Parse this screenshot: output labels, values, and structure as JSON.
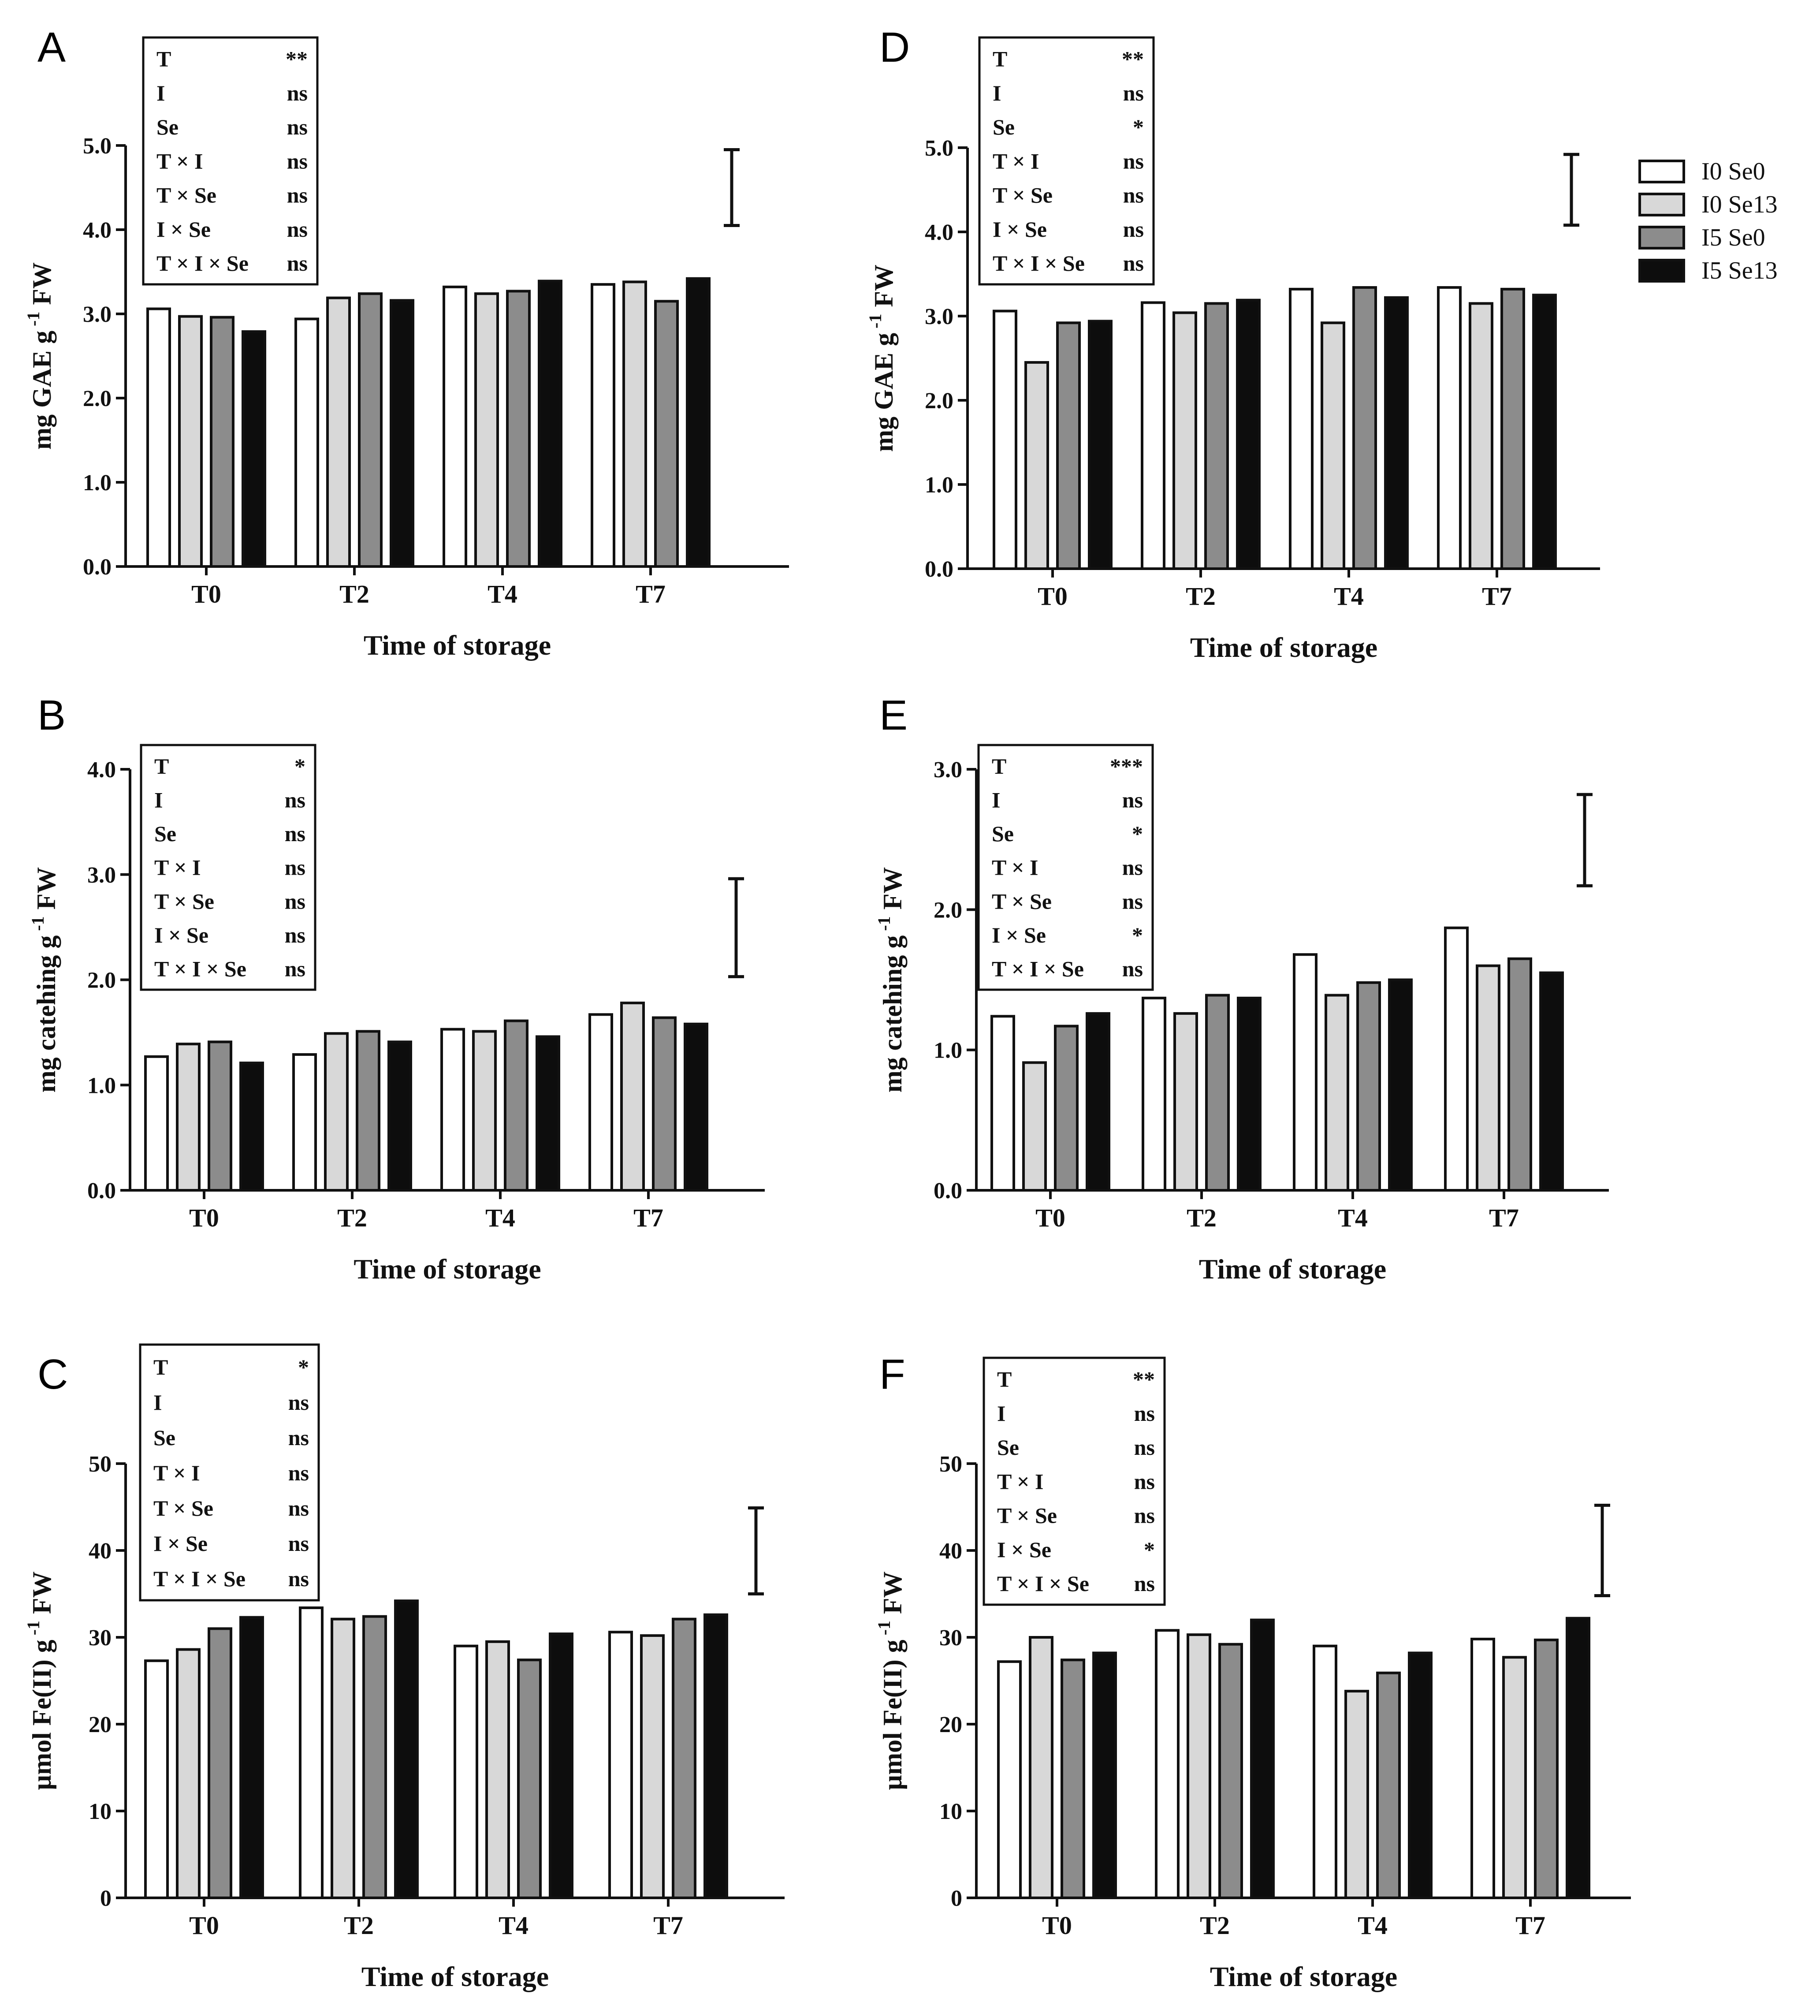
{
  "legend": {
    "entries": [
      {
        "label": "I0 Se0",
        "color": "#ffffff"
      },
      {
        "label": "I0 Se13",
        "color": "#d8d8d8"
      },
      {
        "label": "I5 Se0",
        "color": "#8c8c8c"
      },
      {
        "label": "I5 Se13",
        "color": "#0d0d0d"
      }
    ]
  },
  "chart_data": [
    {
      "panel": "A",
      "type": "bar",
      "title": "",
      "xlabel": "Time of storage",
      "ylabel_main": "mg GAE g",
      "ylabel_sup": "-1",
      "ylabel_tail": " FW",
      "ylim": [
        0,
        5
      ],
      "yticks": [
        0,
        1,
        2,
        3,
        4,
        5
      ],
      "ytick_labels": [
        "0.0",
        "1.0",
        "2.0",
        "3.0",
        "4.0",
        "5.0"
      ],
      "categories": [
        "T0",
        "T2",
        "T4",
        "T7"
      ],
      "series": [
        {
          "name": "I0 Se0",
          "values": [
            3.06,
            2.94,
            3.32,
            3.35
          ]
        },
        {
          "name": "I0 Se13",
          "values": [
            2.97,
            3.19,
            3.24,
            3.38
          ]
        },
        {
          "name": "I5 Se0",
          "values": [
            2.96,
            3.24,
            3.27,
            3.15
          ]
        },
        {
          "name": "I5 Se13",
          "values": [
            2.79,
            3.16,
            3.39,
            3.42
          ]
        }
      ],
      "error_bar": [
        4.05,
        4.95
      ],
      "stats": [
        [
          "T",
          "**"
        ],
        [
          "I",
          "ns"
        ],
        [
          "Se",
          "ns"
        ],
        [
          "T × I",
          "ns"
        ],
        [
          "T × Se",
          "ns"
        ],
        [
          "I × Se",
          "ns"
        ],
        [
          "T × I × Se",
          "ns"
        ]
      ]
    },
    {
      "panel": "B",
      "type": "bar",
      "title": "",
      "xlabel": "Time of storage",
      "ylabel_main": "mg catehing g",
      "ylabel_sup": "-1",
      "ylabel_tail": " FW",
      "ylim": [
        0,
        4
      ],
      "yticks": [
        0,
        1,
        2,
        3,
        4
      ],
      "ytick_labels": [
        "0.0",
        "1.0",
        "2.0",
        "3.0",
        "4.0"
      ],
      "categories": [
        "T0",
        "T2",
        "T4",
        "T7"
      ],
      "series": [
        {
          "name": "I0 Se0",
          "values": [
            1.27,
            1.29,
            1.53,
            1.67
          ]
        },
        {
          "name": "I0 Se13",
          "values": [
            1.39,
            1.49,
            1.51,
            1.78
          ]
        },
        {
          "name": "I5 Se0",
          "values": [
            1.41,
            1.51,
            1.61,
            1.64
          ]
        },
        {
          "name": "I5 Se13",
          "values": [
            1.21,
            1.41,
            1.46,
            1.58
          ]
        }
      ],
      "error_bar": [
        2.03,
        2.96
      ],
      "stats": [
        [
          "T",
          "*"
        ],
        [
          "I",
          "ns"
        ],
        [
          "Se",
          "ns"
        ],
        [
          "T × I",
          "ns"
        ],
        [
          "T × Se",
          "ns"
        ],
        [
          "I × Se",
          "ns"
        ],
        [
          "T × I × Se",
          "ns"
        ]
      ]
    },
    {
      "panel": "C",
      "type": "bar",
      "title": "",
      "xlabel": "Time of storage",
      "ylabel_main": "µmol Fe(II) g",
      "ylabel_sup": "-1",
      "ylabel_tail": " FW",
      "ylim": [
        0,
        50
      ],
      "yticks": [
        0,
        10,
        20,
        30,
        40,
        50
      ],
      "ytick_labels": [
        "0",
        "10",
        "20",
        "30",
        "40",
        "50"
      ],
      "categories": [
        "T0",
        "T2",
        "T4",
        "T7"
      ],
      "series": [
        {
          "name": "I0 Se0",
          "values": [
            27.3,
            33.4,
            29.0,
            30.6
          ]
        },
        {
          "name": "I0 Se13",
          "values": [
            28.6,
            32.1,
            29.5,
            30.2
          ]
        },
        {
          "name": "I5 Se0",
          "values": [
            31.0,
            32.4,
            27.4,
            32.1
          ]
        },
        {
          "name": "I5 Se13",
          "values": [
            32.3,
            34.2,
            30.4,
            32.6
          ]
        }
      ],
      "error_bar": [
        35.0,
        44.9
      ],
      "stats": [
        [
          "T",
          "*"
        ],
        [
          "I",
          "ns"
        ],
        [
          "Se",
          "ns"
        ],
        [
          "T × I",
          "ns"
        ],
        [
          "T × Se",
          "ns"
        ],
        [
          "I × Se",
          "ns"
        ],
        [
          "T × I × Se",
          "ns"
        ]
      ]
    },
    {
      "panel": "D",
      "type": "bar",
      "title": "",
      "xlabel": "Time of storage",
      "ylabel_main": "mg GAE g",
      "ylabel_sup": "-1",
      "ylabel_tail": " FW",
      "ylim": [
        0,
        5
      ],
      "yticks": [
        0,
        1,
        2,
        3,
        4,
        5
      ],
      "ytick_labels": [
        "0.0",
        "1.0",
        "2.0",
        "3.0",
        "4.0",
        "5.0"
      ],
      "categories": [
        "T0",
        "T2",
        "T4",
        "T7"
      ],
      "series": [
        {
          "name": "I0 Se0",
          "values": [
            3.06,
            3.16,
            3.32,
            3.34
          ]
        },
        {
          "name": "I0 Se13",
          "values": [
            2.45,
            3.04,
            2.92,
            3.15
          ]
        },
        {
          "name": "I5 Se0",
          "values": [
            2.92,
            3.15,
            3.34,
            3.32
          ]
        },
        {
          "name": "I5 Se13",
          "values": [
            2.94,
            3.19,
            3.22,
            3.25
          ]
        }
      ],
      "error_bar": [
        4.08,
        4.92
      ],
      "stats": [
        [
          "T",
          "**"
        ],
        [
          "I",
          "ns"
        ],
        [
          "Se",
          "*"
        ],
        [
          "T × I",
          "ns"
        ],
        [
          "T × Se",
          "ns"
        ],
        [
          "I × Se",
          "ns"
        ],
        [
          "T × I × Se",
          "ns"
        ]
      ]
    },
    {
      "panel": "E",
      "type": "bar",
      "title": "",
      "xlabel": "Time of storage",
      "ylabel_main": "mg catehing g",
      "ylabel_sup": "-1",
      "ylabel_tail": " FW",
      "ylim": [
        0,
        3
      ],
      "yticks": [
        0,
        1,
        2,
        3
      ],
      "ytick_labels": [
        "0.0",
        "1.0",
        "2.0",
        "3.0"
      ],
      "categories": [
        "T0",
        "T2",
        "T4",
        "T7"
      ],
      "series": [
        {
          "name": "I0 Se0",
          "values": [
            1.24,
            1.37,
            1.68,
            1.87
          ]
        },
        {
          "name": "I0 Se13",
          "values": [
            0.91,
            1.26,
            1.39,
            1.6
          ]
        },
        {
          "name": "I5 Se0",
          "values": [
            1.17,
            1.39,
            1.48,
            1.65
          ]
        },
        {
          "name": "I5 Se13",
          "values": [
            1.26,
            1.37,
            1.5,
            1.55
          ]
        }
      ],
      "error_bar": [
        2.17,
        2.82
      ],
      "stats": [
        [
          "T",
          "***"
        ],
        [
          "I",
          "ns"
        ],
        [
          "Se",
          "*"
        ],
        [
          "T × I",
          "ns"
        ],
        [
          "T × Se",
          "ns"
        ],
        [
          "I × Se",
          "*"
        ],
        [
          "T × I × Se",
          "ns"
        ]
      ]
    },
    {
      "panel": "F",
      "type": "bar",
      "title": "",
      "xlabel": "Time of storage",
      "ylabel_main": "µmol Fe(II) g",
      "ylabel_sup": "-1",
      "ylabel_tail": " FW",
      "ylim": [
        0,
        50
      ],
      "yticks": [
        0,
        10,
        20,
        30,
        40,
        50
      ],
      "ytick_labels": [
        "0",
        "10",
        "20",
        "30",
        "40",
        "50"
      ],
      "categories": [
        "T0",
        "T2",
        "T4",
        "T7"
      ],
      "series": [
        {
          "name": "I0 Se0",
          "values": [
            27.2,
            30.8,
            29.0,
            29.8
          ]
        },
        {
          "name": "I0 Se13",
          "values": [
            30.0,
            30.3,
            23.8,
            27.7
          ]
        },
        {
          "name": "I5 Se0",
          "values": [
            27.4,
            29.2,
            25.9,
            29.7
          ]
        },
        {
          "name": "I5 Se13",
          "values": [
            28.2,
            32.0,
            28.2,
            32.2
          ]
        }
      ],
      "error_bar": [
        34.8,
        45.2
      ],
      "stats": [
        [
          "T",
          "**"
        ],
        [
          "I",
          "ns"
        ],
        [
          "Se",
          "ns"
        ],
        [
          "T × I",
          "ns"
        ],
        [
          "T × Se",
          "ns"
        ],
        [
          "I × Se",
          "*"
        ],
        [
          "T × I × Se",
          "ns"
        ]
      ]
    }
  ]
}
